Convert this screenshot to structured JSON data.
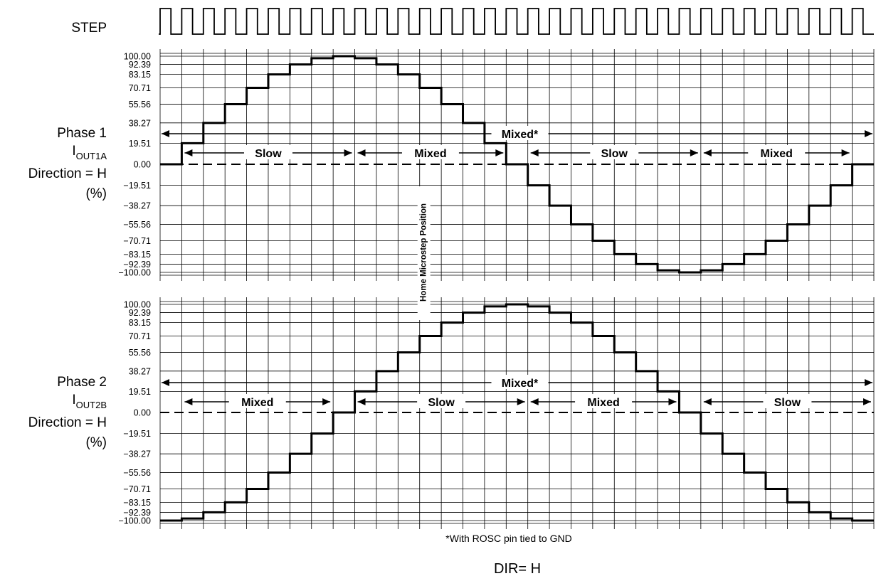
{
  "step_label": "STEP",
  "phase1": {
    "label_line1": "Phase 1",
    "label_line2_main": "I",
    "label_line2_sub": "OUT1A",
    "label_line3": "Direction = H",
    "label_line4": "(%)",
    "mixed_star_label": "Mixed*",
    "regions": [
      {
        "label": "Slow",
        "from": 1,
        "to": 9
      },
      {
        "label": "Mixed",
        "from": 9,
        "to": 16
      },
      {
        "label": "Slow",
        "from": 17,
        "to": 25
      },
      {
        "label": "Mixed",
        "from": 25,
        "to": 32
      }
    ]
  },
  "phase2": {
    "label_line1": "Phase 2",
    "label_line2_main": "I",
    "label_line2_sub": "OUT2B",
    "label_line3": "Direction = H",
    "label_line4": "(%)",
    "mixed_star_label": "Mixed*",
    "regions": [
      {
        "label": "Mixed",
        "from": 1,
        "to": 8
      },
      {
        "label": "Slow",
        "from": 9,
        "to": 17
      },
      {
        "label": "Mixed",
        "from": 17,
        "to": 24
      },
      {
        "label": "Slow",
        "from": 25,
        "to": 33
      }
    ]
  },
  "home_label": "Home Microstep Position",
  "footnote": "*With ROSC pin tied to GND",
  "dir_label": "DIR= H",
  "chart_data": {
    "type": "line",
    "x": [
      0,
      1,
      2,
      3,
      4,
      5,
      6,
      7,
      8,
      9,
      10,
      11,
      12,
      13,
      14,
      15,
      16,
      17,
      18,
      19,
      20,
      21,
      22,
      23,
      24,
      25,
      26,
      27,
      28,
      29,
      30,
      31,
      32,
      33
    ],
    "y_ticks": [
      "100.00",
      "92.39",
      "83.15",
      "70.71",
      "55.56",
      "38.27",
      "19.51",
      "0.00",
      "-19.51",
      "-38.27",
      "-55.56",
      "-70.71",
      "-83.15",
      "-92.39",
      "-100.00"
    ],
    "ylim": [
      -100,
      100
    ],
    "home_step": 12,
    "series": [
      {
        "values": [
          0,
          19.51,
          38.27,
          55.56,
          70.71,
          83.15,
          92.39,
          98.08,
          100,
          98.08,
          92.39,
          83.15,
          70.71,
          55.56,
          38.27,
          19.51,
          0,
          -19.51,
          -38.27,
          -55.56,
          -70.71,
          -83.15,
          -92.39,
          -98.08,
          -100,
          -98.08,
          -92.39,
          -83.15,
          -70.71,
          -55.56,
          -38.27,
          -19.51,
          0,
          0
        ]
      },
      {
        "values": [
          -100,
          -98.08,
          -92.39,
          -83.15,
          -70.71,
          -55.56,
          -38.27,
          -19.51,
          0,
          19.51,
          38.27,
          55.56,
          70.71,
          83.15,
          92.39,
          98.08,
          100,
          98.08,
          92.39,
          83.15,
          70.71,
          55.56,
          38.27,
          19.51,
          0,
          -19.51,
          -38.27,
          -55.56,
          -70.71,
          -83.15,
          -92.39,
          -98.08,
          -100,
          -100
        ]
      }
    ]
  }
}
